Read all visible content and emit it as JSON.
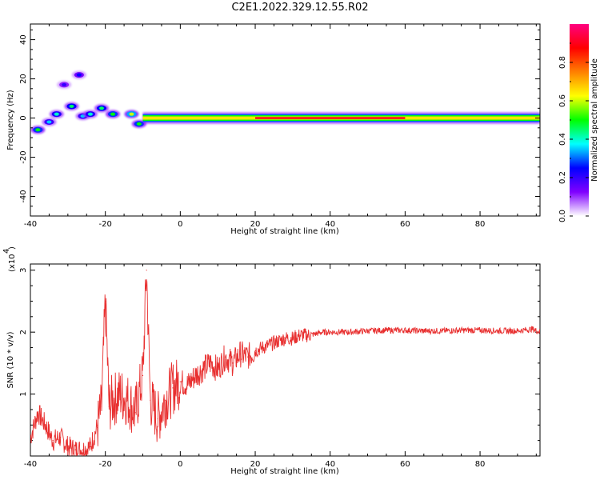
{
  "title": "C2E1.2022.329.12.55.R02",
  "chart_data": [
    {
      "type": "heatmap",
      "title": "C2E1.2022.329.12.55.R02",
      "xlabel": "Height of straight line (km)",
      "ylabel": "Frequency (Hz)",
      "xlim": [
        -40,
        96
      ],
      "ylim": [
        -50,
        48
      ],
      "xticks": [
        -40,
        -20,
        0,
        20,
        40,
        60,
        80
      ],
      "yticks": [
        -40,
        -20,
        0,
        20,
        40
      ],
      "colorbar": {
        "label": "Normalized spectral amplitude",
        "range": [
          0.0,
          1.0
        ],
        "ticks": [
          0.0,
          0.2,
          0.4,
          0.6,
          0.8
        ],
        "colormap": [
          "#ffffff",
          "#8000ff",
          "#0000ff",
          "#00ffff",
          "#00ff00",
          "#ffff00",
          "#ff8000",
          "#ff0000",
          "#ff0080"
        ]
      },
      "main_band": {
        "frequency_hz": 0,
        "x_range": [
          -10,
          96
        ],
        "peak_amplitude": 0.9
      },
      "scattered_features": [
        {
          "x": -38,
          "y": -6,
          "amp": 0.5
        },
        {
          "x": -35,
          "y": -2,
          "amp": 0.35
        },
        {
          "x": -33,
          "y": 2,
          "amp": 0.4
        },
        {
          "x": -31,
          "y": 17,
          "amp": 0.2
        },
        {
          "x": -29,
          "y": 6,
          "amp": 0.45
        },
        {
          "x": -27,
          "y": 22,
          "amp": 0.25
        },
        {
          "x": -26,
          "y": 1,
          "amp": 0.35
        },
        {
          "x": -24,
          "y": 2,
          "amp": 0.4
        },
        {
          "x": -21,
          "y": 5,
          "amp": 0.45
        },
        {
          "x": -18,
          "y": 2,
          "amp": 0.5
        },
        {
          "x": -13,
          "y": 2,
          "amp": 0.6
        },
        {
          "x": -11,
          "y": -3,
          "amp": 0.5
        }
      ]
    },
    {
      "type": "line",
      "xlabel": "Height of straight line (km)",
      "ylabel": "SNR (10 * v/v)",
      "y_multiplier": "(x10",
      "y_multiplier_exp": "4",
      "xlim": [
        -40,
        96
      ],
      "ylim": [
        0,
        3.1
      ],
      "xticks": [
        -40,
        -20,
        0,
        20,
        40,
        60,
        80
      ],
      "yticks": [
        1,
        2,
        3
      ],
      "color": "#e83030",
      "series": [
        {
          "x": [
            -40,
            -38,
            -36,
            -34,
            -32,
            -30,
            -28,
            -26,
            -24,
            -22,
            -21,
            -20,
            -19,
            -18,
            -16,
            -14,
            -12,
            -10,
            -9,
            -8,
            -6,
            -4,
            -2,
            0,
            2,
            4,
            6,
            8,
            10,
            12,
            14,
            16,
            18,
            20,
            22,
            24,
            26,
            28,
            30,
            32,
            34,
            36,
            38,
            40,
            45,
            50,
            55,
            60,
            65,
            70,
            75,
            80,
            85,
            90,
            94,
            96
          ],
          "y": [
            0.3,
            0.7,
            0.5,
            0.25,
            0.3,
            0.15,
            0.1,
            0.1,
            0.15,
            0.5,
            0.8,
            2.5,
            0.8,
            0.9,
            1.0,
            0.9,
            0.7,
            1.3,
            3.0,
            0.9,
            0.6,
            0.9,
            1.1,
            1.2,
            1.15,
            1.3,
            1.4,
            1.5,
            1.4,
            1.6,
            1.5,
            1.65,
            1.6,
            1.7,
            1.75,
            1.8,
            1.85,
            1.9,
            1.9,
            1.95,
            1.95,
            1.97,
            2.0,
            2.0,
            2.0,
            2.02,
            2.03,
            2.03,
            2.02,
            2.02,
            2.03,
            2.03,
            2.02,
            2.02,
            2.05,
            2.0
          ]
        }
      ]
    }
  ]
}
